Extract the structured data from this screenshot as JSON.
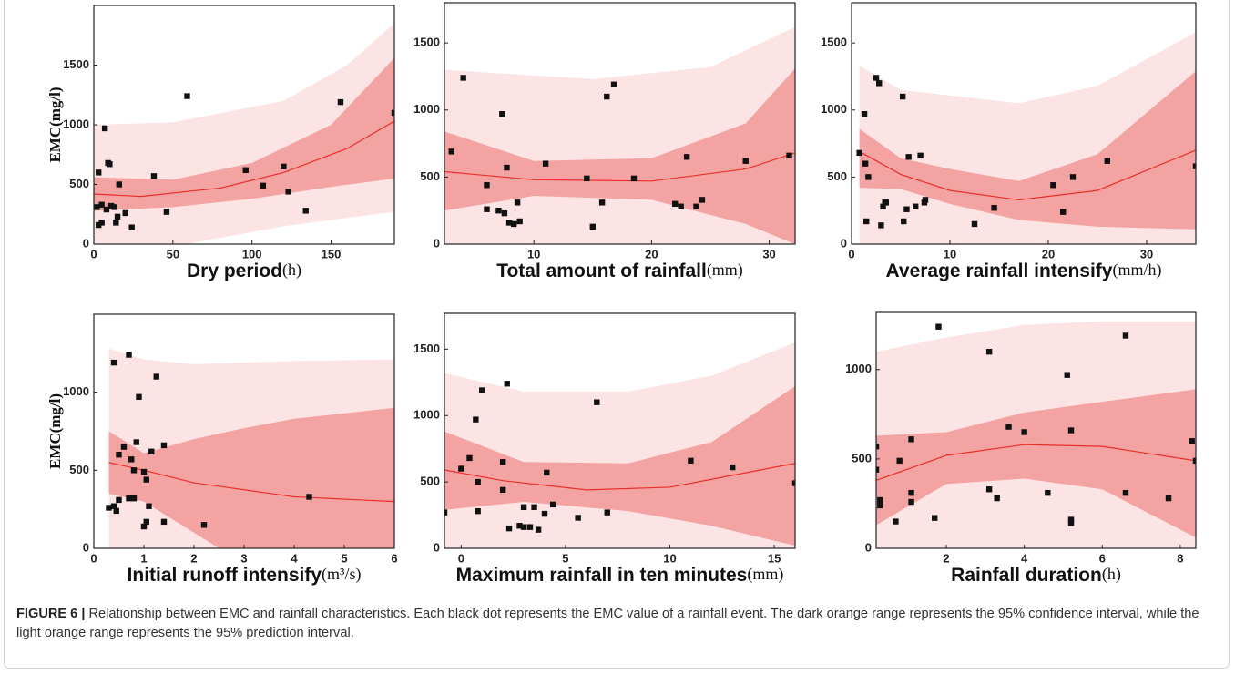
{
  "chart_data": [
    {
      "type": "scatter",
      "xlabel": "Dry period",
      "xunit": "(h)",
      "ylabel": "EMC(mg/l)",
      "x": [
        2,
        3,
        3,
        5,
        5,
        7,
        8,
        9,
        10,
        11,
        13,
        14,
        15,
        16,
        20,
        24,
        38,
        46,
        59,
        96,
        107,
        120,
        123,
        134,
        156,
        190
      ],
      "values": [
        310,
        600,
        160,
        180,
        330,
        970,
        290,
        680,
        670,
        320,
        310,
        180,
        230,
        500,
        260,
        140,
        570,
        270,
        1240,
        620,
        490,
        650,
        440,
        280,
        1190,
        1100
      ],
      "color": "#111111",
      "fit": {
        "x": [
          0,
          30,
          80,
          120,
          160,
          190
        ],
        "values": [
          420,
          400,
          470,
          600,
          800,
          1030
        ],
        "color": "#e8302a"
      },
      "confidence_interval": {
        "x": [
          0,
          50,
          100,
          150,
          190
        ],
        "lower": [
          280,
          310,
          380,
          480,
          550
        ],
        "upper": [
          560,
          540,
          680,
          1000,
          1560
        ],
        "color": "#f4a3a3"
      },
      "prediction_interval": {
        "x": [
          0,
          50,
          120,
          160,
          190
        ],
        "lower": [
          -150,
          -20,
          150,
          220,
          270
        ],
        "upper": [
          1000,
          1020,
          1200,
          1500,
          1850
        ],
        "color": "#fce4e4"
      },
      "xlim": [
        0,
        190
      ],
      "ylim": [
        0,
        2000
      ],
      "xticks": [
        0,
        50,
        100,
        150
      ],
      "yticks": [
        0,
        500,
        1000,
        1500
      ]
    },
    {
      "type": "scatter",
      "xlabel": "Total amount of rainfall",
      "xunit": "(mm)",
      "x": [
        3,
        4,
        6,
        6,
        7,
        7.3,
        7.5,
        7.7,
        7.9,
        8.3,
        8.6,
        8.8,
        11,
        14.5,
        15,
        15.8,
        16.2,
        16.8,
        18.5,
        22,
        22.5,
        23,
        23.8,
        24.3,
        28,
        31.7
      ],
      "values": [
        690,
        1240,
        440,
        260,
        250,
        970,
        230,
        570,
        160,
        150,
        310,
        170,
        600,
        490,
        130,
        310,
        1100,
        1190,
        490,
        300,
        280,
        650,
        280,
        330,
        620,
        660
      ],
      "color": "#111111",
      "fit": {
        "x": [
          2.4,
          10,
          20,
          28,
          32.2
        ],
        "values": [
          540,
          480,
          470,
          560,
          680
        ],
        "color": "#e8302a"
      },
      "confidence_interval": {
        "x": [
          2.4,
          10,
          20,
          28,
          32.2
        ],
        "lower": [
          250,
          360,
          330,
          150,
          0
        ],
        "upper": [
          840,
          620,
          640,
          900,
          1310
        ],
        "color": "#f4a3a3"
      },
      "prediction_interval": {
        "x": [
          2.4,
          15,
          25,
          32.2
        ],
        "lower": [
          -250,
          -150,
          -250,
          -400
        ],
        "upper": [
          1300,
          1230,
          1320,
          1620
        ],
        "color": "#fce4e4"
      },
      "xlim": [
        2.4,
        32.2
      ],
      "ylim": [
        0,
        1800
      ],
      "xticks": [
        10,
        20,
        30
      ],
      "yticks": [
        0,
        500,
        1000,
        1500
      ]
    },
    {
      "type": "scatter",
      "xlabel": "Average rainfall intensify",
      "xunit": "(mm/h)",
      "x": [
        0.8,
        1.3,
        1.4,
        1.5,
        1.7,
        2.5,
        2.8,
        3,
        3.2,
        3.4,
        3.5,
        5.2,
        5.3,
        5.6,
        5.8,
        6.5,
        7,
        7.4,
        7.5,
        12.5,
        14.5,
        20.5,
        21.5,
        22.5,
        26,
        35
      ],
      "values": [
        680,
        970,
        600,
        170,
        500,
        1240,
        1200,
        140,
        280,
        310,
        310,
        1100,
        170,
        260,
        650,
        280,
        660,
        310,
        330,
        150,
        270,
        440,
        240,
        500,
        620,
        580
      ],
      "color": "#111111",
      "fit": {
        "x": [
          0.8,
          5,
          10,
          17,
          25,
          35
        ],
        "values": [
          690,
          520,
          400,
          330,
          400,
          700
        ],
        "color": "#e8302a"
      },
      "confidence_interval": {
        "x": [
          0.8,
          5,
          10,
          17,
          25,
          35
        ],
        "lower": [
          420,
          410,
          300,
          180,
          130,
          110
        ],
        "upper": [
          860,
          640,
          560,
          470,
          670,
          1290
        ],
        "color": "#f4a3a3"
      },
      "prediction_interval": {
        "x": [
          0.8,
          5,
          17,
          25,
          35
        ],
        "lower": [
          -50,
          -80,
          -200,
          -150,
          -100
        ],
        "upper": [
          1330,
          1150,
          1050,
          1180,
          1580
        ],
        "color": "#fce4e4"
      },
      "xlim": [
        0,
        35
      ],
      "ylim": [
        0,
        1800
      ],
      "xticks": [
        0,
        10,
        20,
        30
      ],
      "yticks": [
        0,
        500,
        1000,
        1500
      ]
    },
    {
      "type": "scatter",
      "xlabel": "Initial runoff intensify",
      "xunit": "(m³/s)",
      "ylabel": "EMC(mg/l)",
      "x": [
        0.3,
        0.4,
        0.4,
        0.45,
        0.5,
        0.5,
        0.6,
        0.7,
        0.7,
        0.75,
        0.8,
        0.8,
        0.85,
        0.9,
        1.0,
        1.0,
        1.05,
        1.05,
        1.1,
        1.15,
        1.25,
        1.4,
        1.4,
        2.2,
        4.3
      ],
      "values": [
        260,
        1190,
        270,
        240,
        310,
        600,
        650,
        1240,
        320,
        570,
        320,
        500,
        680,
        970,
        140,
        490,
        170,
        440,
        270,
        620,
        1100,
        660,
        170,
        150,
        330
      ],
      "color": "#111111",
      "fit": {
        "x": [
          0.3,
          1,
          2,
          4,
          6
        ],
        "values": [
          550,
          500,
          420,
          330,
          300
        ],
        "color": "#e8302a"
      },
      "confidence_interval": {
        "x": [
          0.3,
          1,
          2,
          3,
          4,
          6
        ],
        "lower": [
          350,
          300,
          100,
          -100,
          -200,
          -300
        ],
        "upper": [
          750,
          610,
          700,
          770,
          830,
          900
        ],
        "color": "#f4a3a3"
      },
      "prediction_interval": {
        "x": [
          0.3,
          1,
          2,
          4,
          6
        ],
        "lower": [
          -80,
          -100,
          -250,
          -450,
          -600
        ],
        "upper": [
          1280,
          1210,
          1180,
          1200,
          1210
        ],
        "color": "#fce4e4"
      },
      "xlim": [
        0,
        6
      ],
      "ylim": [
        0,
        1500
      ],
      "xticks": [
        0,
        1,
        2,
        3,
        4,
        5,
        6
      ],
      "yticks": [
        0,
        500,
        1000
      ]
    },
    {
      "type": "scatter",
      "xlabel": "Maximum rainfall in ten minutes",
      "xunit": "(mm)",
      "x": [
        -0.8,
        0,
        0.4,
        0.7,
        0.8,
        0.8,
        1,
        2,
        2,
        2.2,
        2.3,
        2.8,
        3,
        3,
        3.3,
        3.5,
        3.7,
        4,
        4.1,
        4.4,
        5.6,
        6.5,
        7,
        11,
        13,
        16
      ],
      "values": [
        270,
        600,
        680,
        970,
        500,
        280,
        1190,
        650,
        440,
        1240,
        150,
        170,
        310,
        160,
        160,
        310,
        140,
        260,
        570,
        330,
        230,
        1100,
        270,
        660,
        610,
        490
      ],
      "color": "#111111",
      "fit": {
        "x": [
          -0.8,
          2,
          6,
          10,
          16
        ],
        "values": [
          590,
          510,
          440,
          460,
          640
        ],
        "color": "#e8302a"
      },
      "confidence_interval": {
        "x": [
          -0.8,
          3,
          8,
          12,
          16
        ],
        "lower": [
          290,
          350,
          280,
          170,
          20
        ],
        "upper": [
          880,
          650,
          640,
          800,
          1220
        ],
        "color": "#f4a3a3"
      },
      "prediction_interval": {
        "x": [
          -0.8,
          3,
          8,
          12,
          16
        ],
        "lower": [
          -150,
          -100,
          -150,
          -250,
          -300
        ],
        "upper": [
          1320,
          1180,
          1180,
          1300,
          1550
        ],
        "color": "#fce4e4"
      },
      "xlim": [
        -0.8,
        16
      ],
      "ylim": [
        0,
        1770
      ],
      "xticks": [
        0,
        5,
        10,
        15
      ],
      "yticks": [
        0,
        500,
        1000,
        1500
      ]
    },
    {
      "type": "scatter",
      "xlabel": "Rainfall duration",
      "xunit": "(h)",
      "x": [
        0.2,
        0.2,
        0.3,
        0.3,
        0.7,
        0.8,
        1.1,
        1.1,
        1.1,
        1.7,
        1.8,
        3.1,
        3.1,
        3.3,
        3.6,
        4,
        4.6,
        5.1,
        5.2,
        5.2,
        5.2,
        6.6,
        6.6,
        7.7,
        8.3,
        8.4
      ],
      "values": [
        570,
        440,
        240,
        270,
        150,
        490,
        610,
        310,
        260,
        170,
        1240,
        1100,
        330,
        280,
        680,
        650,
        310,
        970,
        160,
        140,
        660,
        1190,
        310,
        280,
        600,
        490
      ],
      "color": "#111111",
      "fit": {
        "x": [
          0.2,
          2,
          4,
          6,
          8.4
        ],
        "values": [
          380,
          520,
          580,
          570,
          490
        ],
        "color": "#e8302a"
      },
      "confidence_interval": {
        "x": [
          0.2,
          2,
          4,
          6,
          8.4
        ],
        "lower": [
          130,
          360,
          390,
          330,
          60
        ],
        "upper": [
          630,
          650,
          760,
          820,
          890
        ],
        "color": "#f4a3a3"
      },
      "prediction_interval": {
        "x": [
          0.2,
          2,
          4,
          6,
          8.4
        ],
        "lower": [
          -200,
          -120,
          -100,
          -150,
          -250
        ],
        "upper": [
          1100,
          1180,
          1250,
          1270,
          1270
        ],
        "color": "#fce4e4"
      },
      "xlim": [
        0.2,
        8.4
      ],
      "ylim": [
        0,
        1320
      ],
      "xticks": [
        2,
        4,
        6,
        8
      ],
      "yticks": [
        0,
        500,
        1000
      ]
    }
  ],
  "caption": {
    "label": "FIGURE 6 |",
    "text": "Relationship between EMC and rainfall characteristics. Each black dot represents the EMC value of a rainfall event. The dark orange range represents the 95% confidence interval, while the light orange range represents the 95% prediction interval."
  }
}
